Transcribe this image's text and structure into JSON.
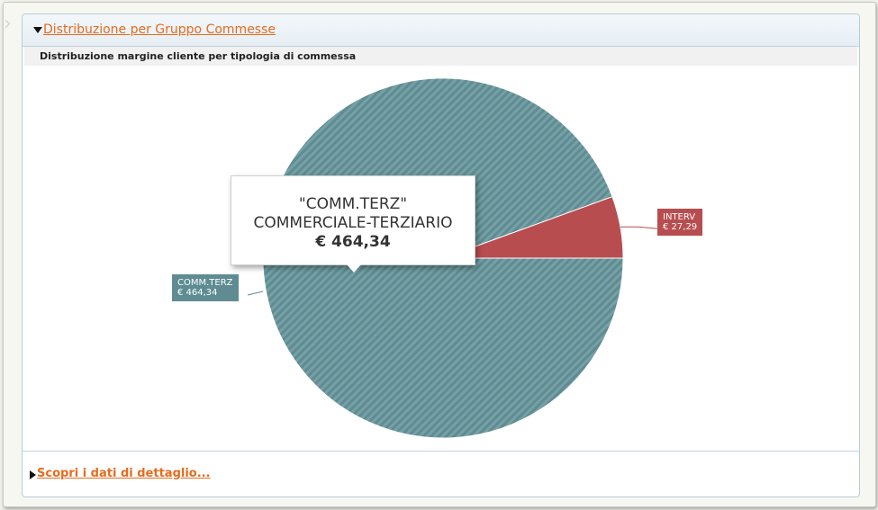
{
  "panel": {
    "title": "Distribuzione per Gruppo Commesse",
    "detail_link": "Scopri i dati di dettaglio..."
  },
  "chart_data": {
    "type": "pie",
    "title": "Distribuzione margine cliente per tipologia di commessa",
    "slices": [
      {
        "code": "COMM.TERZ",
        "name": "COMMERCIALE-TERZIARIO",
        "value": 464.34,
        "value_label": "€ 464,34",
        "color": "#5e8c92"
      },
      {
        "code": "INTERV",
        "name": "",
        "value": 27.29,
        "value_label": "€ 27,29",
        "color": "#b84d50"
      }
    ],
    "tooltip": {
      "line1": "\"COMM.TERZ\"",
      "line2": "COMMERCIALE-TERZIARIO",
      "line3": "€ 464,34"
    }
  },
  "colors": {
    "accent": "#e46c1e",
    "panel_border": "#b8cbd9"
  }
}
